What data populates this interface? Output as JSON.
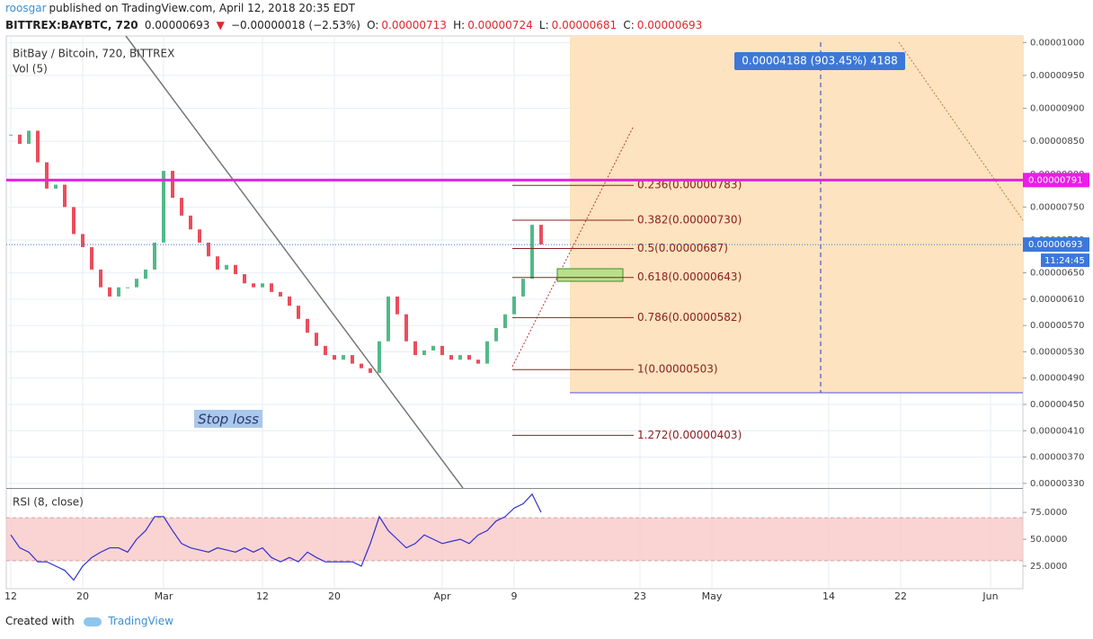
{
  "header": {
    "author": "roosgar",
    "published": "published on TradingView.com, April 12, 2018 20:35 EDT",
    "symbol": "BITTREX:BAYBTC, 720",
    "last": "0.00000693",
    "arrow": "▼",
    "change": "−0.00000018 (−2.53%)",
    "o_label": "O:",
    "o": "0.00000713",
    "h_label": "H:",
    "h": "0.00000724",
    "l_label": "L:",
    "l": "0.00000681",
    "c_label": "C:",
    "c": "0.00000693"
  },
  "xaxis": {
    "xlim": [
      -0.5,
      112.6
    ],
    "xticks": [
      {
        "value": 0,
        "label": "12"
      },
      {
        "value": 8,
        "label": "20"
      },
      {
        "value": 17,
        "label": "Mar"
      },
      {
        "value": 28,
        "label": "12"
      },
      {
        "value": 36,
        "label": "20"
      },
      {
        "value": 48,
        "label": "Apr"
      },
      {
        "value": 56,
        "label": "9"
      },
      {
        "value": 70,
        "label": "23"
      },
      {
        "value": 78,
        "label": "May"
      },
      {
        "value": 91,
        "label": "14"
      },
      {
        "value": 99,
        "label": "22"
      },
      {
        "value": 109,
        "label": "Jun"
      }
    ]
  },
  "chart_data": [
    {
      "type": "candlestick",
      "title": "BitBay / Bitcoin, 720, BITTREX",
      "subtitle": "Vol (5)",
      "x": [
        0,
        1,
        2,
        3,
        4,
        5,
        6,
        7,
        8,
        9,
        10,
        11,
        12,
        13,
        14,
        15,
        16,
        17,
        18,
        19,
        20,
        21,
        22,
        23,
        24,
        25,
        26,
        27,
        28,
        29,
        30,
        31,
        32,
        33,
        34,
        35,
        36,
        37,
        38,
        39,
        40,
        41,
        42,
        43,
        44,
        45,
        46,
        47,
        48,
        49,
        50,
        51,
        52,
        53,
        54,
        55,
        56,
        57,
        58,
        59
      ],
      "values": [
        8.6e-06,
        8.46e-06,
        8.66e-06,
        8.18e-06,
        7.78e-06,
        7.84e-06,
        7.5e-06,
        7.09e-06,
        6.89e-06,
        6.55e-06,
        6.28e-06,
        6.14e-06,
        6.28e-06,
        6.28e-06,
        6.41e-06,
        6.55e-06,
        6.96e-06,
        8.05e-06,
        7.64e-06,
        7.37e-06,
        7.16e-06,
        6.96e-06,
        6.75e-06,
        6.55e-06,
        6.62e-06,
        6.48e-06,
        6.34e-06,
        6.28e-06,
        6.34e-06,
        6.21e-06,
        6.14e-06,
        6e-06,
        5.8e-06,
        5.59e-06,
        5.39e-06,
        5.25e-06,
        5.18e-06,
        5.25e-06,
        5.12e-06,
        5.05e-06,
        4.98e-06,
        5.46e-06,
        6.14e-06,
        5.87e-06,
        5.46e-06,
        5.25e-06,
        5.32e-06,
        5.39e-06,
        5.25e-06,
        5.18e-06,
        5.25e-06,
        5.18e-06,
        5.12e-06,
        5.46e-06,
        5.66e-06,
        5.87e-06,
        6.14e-06,
        6.41e-06,
        7.23e-06,
        6.93e-06
      ],
      "up_color": "#53b987",
      "down_color": "#eb4d5c",
      "ylim": [
        3.23e-06,
        1.01e-05
      ],
      "yticks": [
        {
          "value": 1e-05,
          "label": "0.00001000"
        },
        {
          "value": 9.5e-06,
          "label": "0.00000950"
        },
        {
          "value": 9e-06,
          "label": "0.00000900"
        },
        {
          "value": 8.5e-06,
          "label": "0.00000850"
        },
        {
          "value": 8e-06,
          "label": "0.00000800"
        },
        {
          "value": 7.5e-06,
          "label": "0.00000750"
        },
        {
          "value": 7e-06,
          "label": "0.00000700"
        },
        {
          "value": 6.5e-06,
          "label": "0.00000650"
        },
        {
          "value": 6.1e-06,
          "label": "0.00000610"
        },
        {
          "value": 5.7e-06,
          "label": "0.00000570"
        },
        {
          "value": 5.3e-06,
          "label": "0.00000530"
        },
        {
          "value": 4.9e-06,
          "label": "0.00000490"
        },
        {
          "value": 4.5e-06,
          "label": "0.00000450"
        },
        {
          "value": 4.1e-06,
          "label": "0.00000410"
        },
        {
          "value": 3.7e-06,
          "label": "0.00000370"
        },
        {
          "value": 3.3e-06,
          "label": "0.00000330"
        }
      ],
      "grid": true,
      "fib": [
        {
          "value": 7.83e-06,
          "label": "0.236(0.00000783)"
        },
        {
          "value": 7.3e-06,
          "label": "0.382(0.00000730)"
        },
        {
          "value": 6.87e-06,
          "label": "0.5(0.00000687)"
        },
        {
          "value": 6.43e-06,
          "label": "0.618(0.00000643)"
        },
        {
          "value": 5.82e-06,
          "label": "0.786(0.00000582)"
        },
        {
          "value": 5.03e-06,
          "label": "1(0.00000503)"
        },
        {
          "value": 4.03e-06,
          "label": "1.272(0.00000403)"
        }
      ],
      "resistance": {
        "value": 7.91e-06,
        "label": "0.00000791",
        "color": "#e91ee9"
      },
      "last_price": {
        "value": 6.93e-06,
        "label": "0.00000693",
        "countdown": "11:24:45",
        "color": "#3c78d8"
      },
      "projection": {
        "label": "0.00004188 (903.45%) 4188",
        "bottom": 4.66e-06
      },
      "annotation": "Stop loss"
    },
    {
      "type": "line",
      "title": "RSI (8, close)",
      "color": "#3030d0",
      "x": [
        0,
        1,
        2,
        3,
        4,
        5,
        6,
        7,
        8,
        9,
        10,
        11,
        12,
        13,
        14,
        15,
        16,
        17,
        18,
        19,
        20,
        21,
        22,
        23,
        24,
        25,
        26,
        27,
        28,
        29,
        30,
        31,
        32,
        33,
        34,
        35,
        36,
        37,
        38,
        39,
        40,
        41,
        42,
        43,
        44,
        45,
        46,
        47,
        48,
        49,
        50,
        51,
        52,
        53,
        54,
        55,
        56,
        57,
        58,
        59
      ],
      "values": [
        54,
        42,
        38,
        29,
        29,
        25,
        21,
        12,
        25,
        33,
        38,
        42,
        42,
        38,
        50,
        58,
        71,
        71,
        58,
        46,
        42,
        40,
        38,
        42,
        40,
        38,
        42,
        38,
        42,
        33,
        29,
        33,
        29,
        38,
        33,
        29,
        29,
        29,
        29,
        25,
        46,
        71,
        58,
        50,
        42,
        46,
        54,
        50,
        46,
        48,
        50,
        46,
        54,
        58,
        67,
        71,
        79,
        83,
        92,
        75
      ],
      "ylim": [
        4,
        96
      ],
      "yticks": [
        {
          "value": 75,
          "label": "75.0000"
        },
        {
          "value": 50,
          "label": "50.0000"
        },
        {
          "value": 25,
          "label": "25.0000"
        }
      ],
      "band": [
        30,
        70
      ]
    }
  ],
  "footer": {
    "created": "Created with",
    "brand": "TradingView"
  }
}
